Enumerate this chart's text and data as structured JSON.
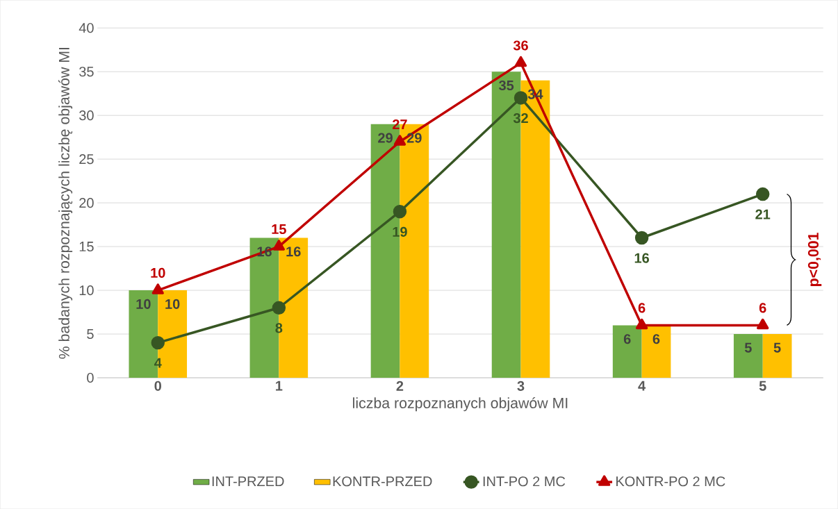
{
  "chart_data": {
    "type": "bar",
    "xlabel": "liczba rozpoznanych objawów MI",
    "ylabel": "% badanych rozpoznających liczbę objawów MI",
    "categories": [
      "0",
      "1",
      "2",
      "3",
      "4",
      "5"
    ],
    "series": [
      {
        "name": "INT-PRZED",
        "color": "#70ad47",
        "values": [
          10,
          16,
          29,
          35,
          6,
          5
        ]
      },
      {
        "name": "KONTR-PRZED",
        "color": "#ffc000",
        "values": [
          10,
          16,
          29,
          34,
          6,
          5
        ]
      },
      {
        "name": "INT-PO 2 MC",
        "type": "line",
        "color": "#375623",
        "marker": "circle",
        "values": [
          4,
          8,
          19,
          32,
          16,
          21
        ]
      },
      {
        "name": "KONTR-PO 2 MC",
        "type": "line",
        "color": "#c00000",
        "marker": "triangle",
        "values": [
          10,
          15,
          27,
          36,
          6,
          6
        ]
      }
    ],
    "ylim": [
      0,
      40
    ],
    "yticks": [
      0,
      5,
      10,
      15,
      20,
      25,
      30,
      35,
      40
    ],
    "grid": "y",
    "legend": "bottom",
    "data_labels": true,
    "annotations": [
      "p<0,001"
    ]
  }
}
